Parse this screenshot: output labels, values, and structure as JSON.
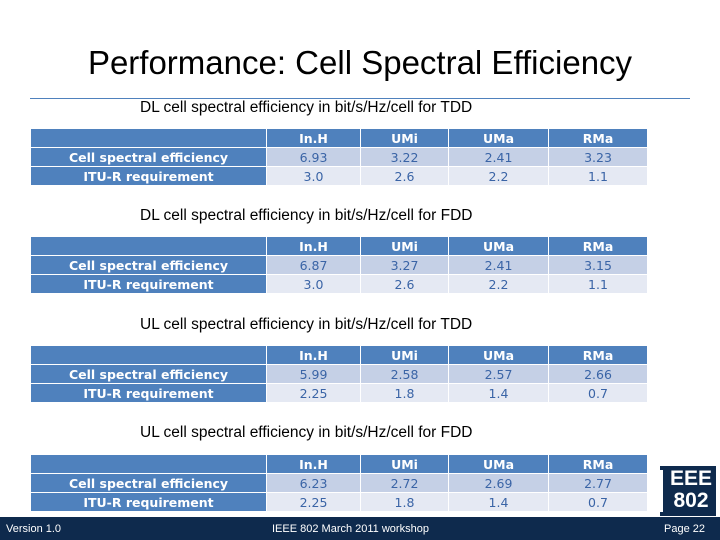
{
  "slide": {
    "title": "Performance: Cell Spectral Efficiency"
  },
  "columns": [
    "",
    "In.H",
    "UMi",
    "UMa",
    "RMa"
  ],
  "tables": [
    {
      "caption": "DL cell spectral efficiency in bit/s/Hz/cell for TDD",
      "rows": [
        {
          "label": "Cell spectral efficiency",
          "values": [
            "6.93",
            "3.22",
            "2.41",
            "3.23"
          ]
        },
        {
          "label": "ITU-R requirement",
          "values": [
            "3.0",
            "2.6",
            "2.2",
            "1.1"
          ]
        }
      ]
    },
    {
      "caption": "DL cell spectral efficiency in bit/s/Hz/cell for FDD",
      "rows": [
        {
          "label": "Cell spectral efficiency",
          "values": [
            "6.87",
            "3.27",
            "2.41",
            "3.15"
          ]
        },
        {
          "label": "ITU-R requirement",
          "values": [
            "3.0",
            "2.6",
            "2.2",
            "1.1"
          ]
        }
      ]
    },
    {
      "caption": "UL cell spectral efficiency in bit/s/Hz/cell for TDD",
      "rows": [
        {
          "label": "Cell spectral efficiency",
          "values": [
            "5.99",
            "2.58",
            "2.57",
            "2.66"
          ]
        },
        {
          "label": "ITU-R requirement",
          "values": [
            "2.25",
            "1.8",
            "1.4",
            "0.7"
          ]
        }
      ]
    },
    {
      "caption": "UL cell spectral efficiency in bit/s/Hz/cell for FDD",
      "rows": [
        {
          "label": "Cell spectral efficiency",
          "values": [
            "6.23",
            "2.72",
            "2.69",
            "2.77"
          ]
        },
        {
          "label": "ITU-R requirement",
          "values": [
            "2.25",
            "1.8",
            "1.4",
            "0.7"
          ]
        }
      ]
    }
  ],
  "footer": {
    "version": "Version 1.0",
    "event": "IEEE 802 March 2011 workshop",
    "page": "Page 22"
  },
  "logo": {
    "line1": "EEE",
    "line2": "802"
  },
  "colors": {
    "header_fill": "#4f81bd",
    "row1_fill": "#c5d0e6",
    "row2_fill": "#e5e9f3",
    "footer_bar": "#0e2a4d"
  }
}
